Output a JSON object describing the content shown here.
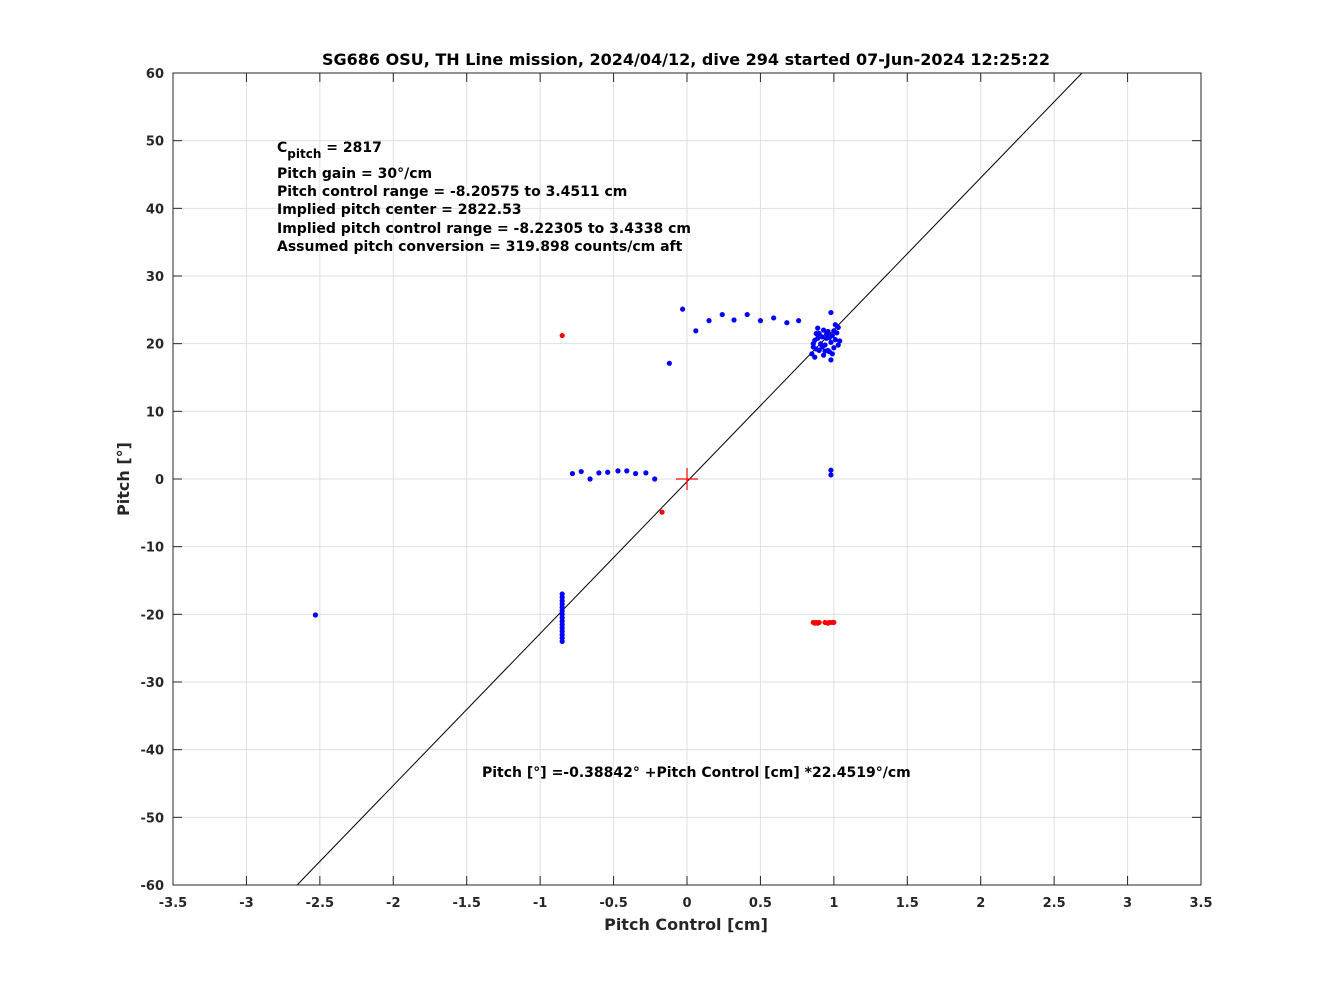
{
  "chart_data": {
    "type": "scatter",
    "title": "SG686 OSU, TH Line mission, 2024/04/12, dive 294 started 07-Jun-2024 12:25:22",
    "xlabel": "Pitch Control [cm]",
    "ylabel": "Pitch [°]",
    "xlim": [
      -3.5,
      3.5
    ],
    "ylim": [
      -60,
      60
    ],
    "xticks": [
      -3.5,
      -3,
      -2.5,
      -2,
      -1.5,
      -1,
      -0.5,
      0,
      0.5,
      1,
      1.5,
      2,
      2.5,
      3,
      3.5
    ],
    "yticks": [
      -60,
      -50,
      -40,
      -30,
      -20,
      -10,
      0,
      10,
      20,
      30,
      40,
      50,
      60
    ],
    "grid": true,
    "annotations": {
      "cpitch_symbol": "C",
      "cpitch_subscript": "pitch",
      "cpitch_value": " = 2817",
      "lines": [
        "Pitch gain = 30°/cm",
        "Pitch control range = -8.20575 to 3.4511 cm",
        "Implied pitch center = 2822.53",
        "Implied pitch control range = -8.22305 to 3.4338 cm",
        "Assumed pitch conversion = 319.898 counts/cm aft"
      ],
      "fit_equation": "Pitch [°] =-0.38842° +Pitch Control [cm] *22.4519°/cm"
    },
    "fit_line": {
      "intercept": -0.38842,
      "slope": 22.4519,
      "color": "#000000"
    },
    "center_marker": {
      "x": 0,
      "y": 0,
      "color": "#ff0000"
    },
    "series": [
      {
        "color": "#0000ff",
        "points": [
          [
            -0.03,
            25.1
          ],
          [
            0.06,
            21.9
          ],
          [
            0.15,
            23.4
          ],
          [
            0.24,
            24.3
          ],
          [
            0.32,
            23.5
          ],
          [
            0.41,
            24.3
          ],
          [
            0.5,
            23.4
          ],
          [
            0.59,
            23.8
          ],
          [
            0.68,
            23.1
          ],
          [
            0.76,
            23.4
          ],
          [
            0.98,
            24.6
          ],
          [
            -0.12,
            17.1
          ],
          [
            -0.78,
            0.8
          ],
          [
            -0.72,
            1.1
          ],
          [
            -0.66,
            0.0
          ],
          [
            -0.6,
            0.9
          ],
          [
            -0.54,
            1.0
          ],
          [
            -0.47,
            1.2
          ],
          [
            -0.41,
            1.2
          ],
          [
            -0.35,
            0.8
          ],
          [
            -0.28,
            0.9
          ],
          [
            -0.22,
            0.0
          ],
          [
            0.98,
            1.3
          ],
          [
            0.98,
            0.6
          ],
          [
            -2.53,
            -20.1
          ],
          [
            -0.85,
            -17.0
          ],
          [
            -0.85,
            -17.5
          ],
          [
            -0.85,
            -18.0
          ],
          [
            -0.85,
            -18.5
          ],
          [
            -0.85,
            -19.0
          ],
          [
            -0.85,
            -19.5
          ],
          [
            -0.85,
            -20.0
          ],
          [
            -0.85,
            -20.5
          ],
          [
            -0.85,
            -21.0
          ],
          [
            -0.85,
            -21.5
          ],
          [
            -0.85,
            -22.0
          ],
          [
            -0.85,
            -22.5
          ],
          [
            -0.85,
            -23.0
          ],
          [
            -0.85,
            -23.5
          ],
          [
            -0.85,
            -24.0
          ],
          [
            0.85,
            18.5
          ],
          [
            0.86,
            19.5
          ],
          [
            0.87,
            20.5
          ],
          [
            0.88,
            21.5
          ],
          [
            0.89,
            22.3
          ],
          [
            0.9,
            19.0
          ],
          [
            0.91,
            20.0
          ],
          [
            0.92,
            21.0
          ],
          [
            0.93,
            18.3
          ],
          [
            0.94,
            19.8
          ],
          [
            0.95,
            20.8
          ],
          [
            0.96,
            21.8
          ],
          [
            0.97,
            18.8
          ],
          [
            0.98,
            20.2
          ],
          [
            0.99,
            21.2
          ],
          [
            1.0,
            19.4
          ],
          [
            1.01,
            20.6
          ],
          [
            1.02,
            21.6
          ],
          [
            1.03,
            22.4
          ],
          [
            1.04,
            20.4
          ],
          [
            0.87,
            18.0
          ],
          [
            0.9,
            21.5
          ],
          [
            0.93,
            22.0
          ],
          [
            0.96,
            19.0
          ],
          [
            0.98,
            17.6
          ],
          [
            0.99,
            18.5
          ],
          [
            1.01,
            22.8
          ],
          [
            0.86,
            20.0
          ],
          [
            0.92,
            19.5
          ],
          [
            0.97,
            20.9
          ],
          [
            1.03,
            19.8
          ],
          [
            0.89,
            20.8
          ],
          [
            0.95,
            21.4
          ],
          [
            1.0,
            21.9
          ],
          [
            0.88,
            19.2
          ],
          [
            0.94,
            18.9
          ]
        ]
      },
      {
        "color": "#ff0000",
        "points": [
          [
            -0.85,
            21.2
          ],
          [
            -0.17,
            -4.9
          ],
          [
            0.86,
            -21.2
          ],
          [
            0.87,
            -21.3
          ],
          [
            0.88,
            -21.2
          ],
          [
            0.89,
            -21.3
          ],
          [
            0.9,
            -21.2
          ],
          [
            0.94,
            -21.2
          ],
          [
            0.96,
            -21.3
          ],
          [
            0.97,
            -21.2
          ],
          [
            0.99,
            -21.2
          ],
          [
            1.0,
            -21.2
          ]
        ]
      }
    ]
  }
}
